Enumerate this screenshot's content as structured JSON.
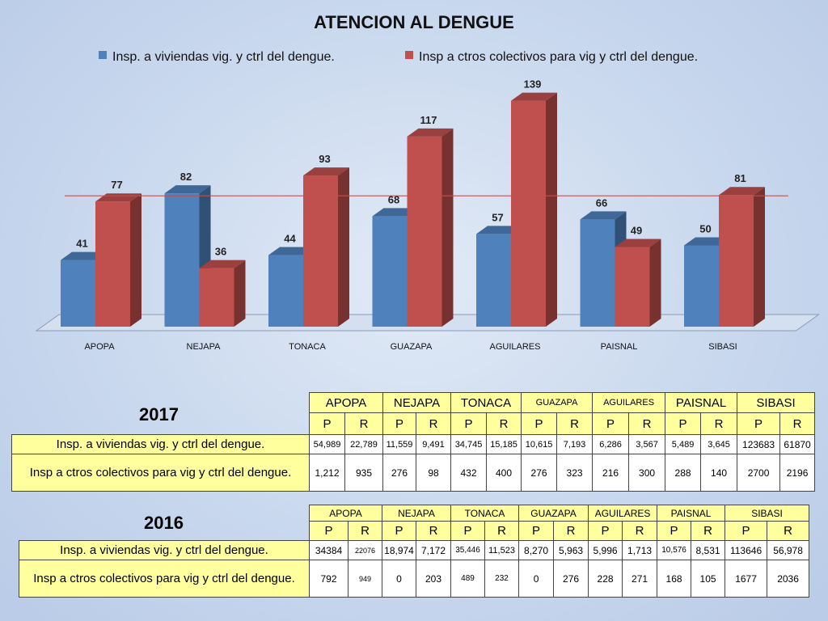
{
  "chart_data": {
    "type": "bar",
    "title": "ATENCION AL DENGUE",
    "categories": [
      "APOPA",
      "NEJAPA",
      "TONACA",
      "GUAZAPA",
      "AGUILARES",
      "PAISNAL",
      "SIBASI"
    ],
    "series": [
      {
        "name": "Insp. a viviendas vig. y ctrl del dengue.",
        "values": [
          41,
          82,
          44,
          68,
          57,
          66,
          50
        ],
        "color": "#4f81bd"
      },
      {
        "name": "Insp a ctros colectivos para vig y ctrl del dengue.",
        "values": [
          77,
          36,
          93,
          117,
          139,
          49,
          81
        ],
        "color": "#c0504d"
      }
    ],
    "reference_line": {
      "value": 80,
      "color": "#c0504d"
    },
    "legend_position": "top",
    "ylim": [
      0,
      150
    ],
    "grid": false,
    "three_d": true
  },
  "tables": {
    "t2017": {
      "year": "2017",
      "headers": [
        "APOPA",
        "NEJAPA",
        "TONACA",
        "GUAZAPA",
        "AGUILARES",
        "PAISNAL",
        "SIBASI"
      ],
      "sub": [
        "P",
        "R",
        "P",
        "R",
        "P",
        "R",
        "P",
        "R",
        "P",
        "R",
        "P",
        "R",
        "P",
        "R"
      ],
      "rows": [
        {
          "label": "Insp. a viviendas vig. y ctrl del dengue.",
          "values": [
            "54,989",
            "22,789",
            "11,559",
            "9,491",
            "34,745",
            "15,185",
            "10,615",
            "7,193",
            "6,286",
            "3,567",
            "5,489",
            "3,645",
            "123683",
            "61870"
          ]
        },
        {
          "label": "Insp a ctros colectivos para vig y ctrl del dengue.",
          "values": [
            "1,212",
            "935",
            "276",
            "98",
            "432",
            "400",
            "276",
            "323",
            "216",
            "300",
            "288",
            "140",
            "2700",
            "2196"
          ]
        }
      ]
    },
    "t2016": {
      "year": "2016",
      "headers": [
        "APOPA",
        "NEJAPA",
        "TONACA",
        "GUAZAPA",
        "AGUILARES",
        "PAISNAL",
        "SIBASI"
      ],
      "sub": [
        "P",
        "R",
        "P",
        "R",
        "P",
        "R",
        "P",
        "R",
        "P",
        "R",
        "P",
        "R",
        "P",
        "R"
      ],
      "rows": [
        {
          "label": "Insp. a viviendas vig. y ctrl del dengue.",
          "values": [
            "34384",
            "22076",
            "18,974",
            "7,172",
            "35,446",
            "11,523",
            "8,270",
            "5,963",
            "5,996",
            "1,713",
            "10,576",
            "8,531",
            "113646",
            "56,978"
          ]
        },
        {
          "label": "Insp a ctros colectivos para vig y ctrl del dengue.",
          "values": [
            "792",
            "949",
            "0",
            "203",
            "489",
            "232",
            "0",
            "276",
            "228",
            "271",
            "168",
            "105",
            "1677",
            "2036"
          ]
        }
      ]
    }
  }
}
